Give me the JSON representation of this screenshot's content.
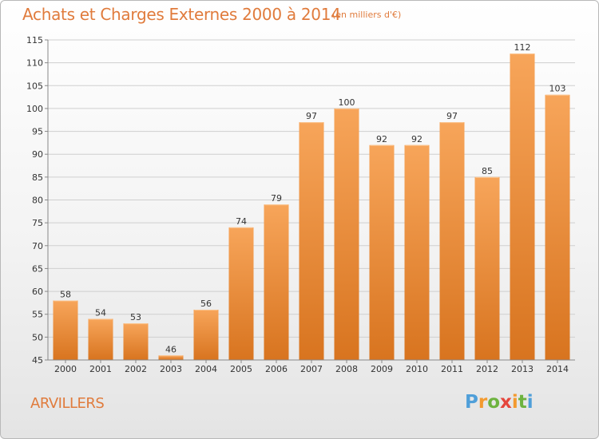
{
  "title": "Achats et Charges Externes 2000 à 2014",
  "subtitle": "(en milliers d'€)",
  "commune": "ARVILLERS",
  "logo": {
    "name": "Proxiti",
    "letters": [
      "P",
      "r",
      "o",
      "x",
      "i",
      "t",
      "i"
    ]
  },
  "colors": {
    "bar_light": "#f7a55a",
    "bar_dark": "#d8741f",
    "title": "#e07b3c",
    "grid": "#cfcfcf",
    "axis_text": "#333333"
  },
  "chart_data": {
    "type": "bar",
    "categories": [
      "2000",
      "2001",
      "2002",
      "2003",
      "2004",
      "2005",
      "2006",
      "2007",
      "2008",
      "2009",
      "2010",
      "2011",
      "2012",
      "2013",
      "2014"
    ],
    "values": [
      58,
      54,
      53,
      46,
      56,
      74,
      79,
      97,
      100,
      92,
      92,
      97,
      85,
      112,
      103
    ],
    "ylim": [
      45,
      115
    ],
    "yticks": [
      45,
      50,
      55,
      60,
      65,
      70,
      75,
      80,
      85,
      90,
      95,
      100,
      105,
      110,
      115
    ],
    "grid": true,
    "data_labels": true
  }
}
